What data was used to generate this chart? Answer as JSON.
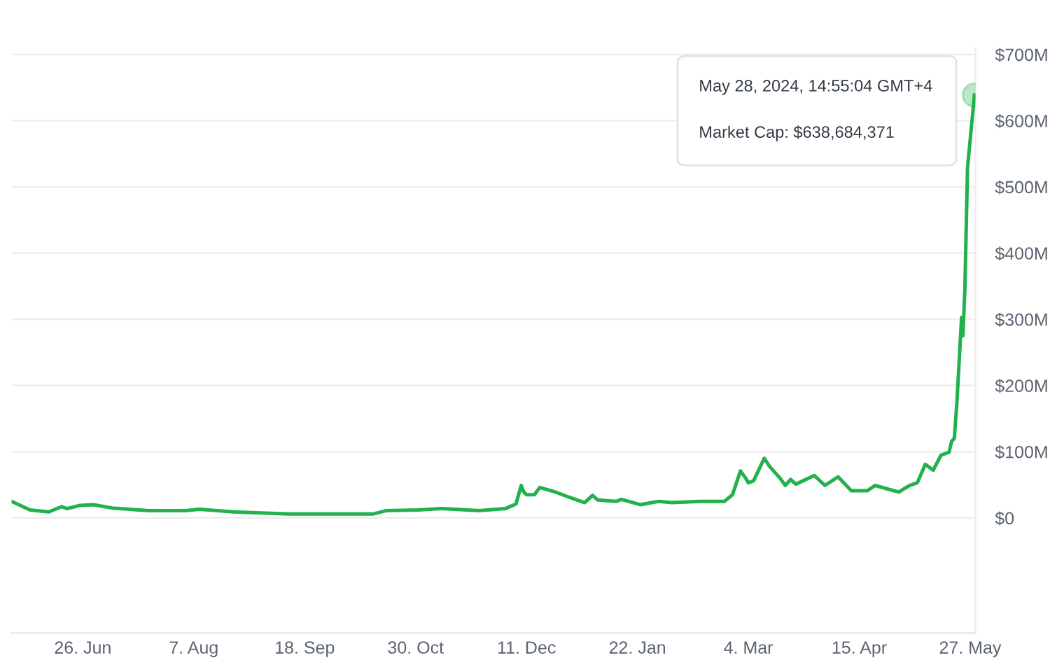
{
  "chart_data": {
    "type": "line",
    "x": [
      "2023-05-30",
      "2023-06-06",
      "2023-06-13",
      "2023-06-18",
      "2023-06-20",
      "2023-06-25",
      "2023-06-30",
      "2023-07-07",
      "2023-07-21",
      "2023-08-04",
      "2023-08-09",
      "2023-08-22",
      "2023-09-12",
      "2023-09-26",
      "2023-10-14",
      "2023-10-19",
      "2023-10-31",
      "2023-11-09",
      "2023-11-23",
      "2023-12-03",
      "2023-12-07",
      "2023-12-09",
      "2023-12-10",
      "2023-12-11",
      "2023-12-14",
      "2023-12-16",
      "2023-12-22",
      "2023-12-28",
      "2024-01-02",
      "2024-01-05",
      "2024-01-07",
      "2024-01-14",
      "2024-01-16",
      "2024-01-23",
      "2024-01-30",
      "2024-02-04",
      "2024-02-15",
      "2024-02-24",
      "2024-02-27",
      "2024-03-01",
      "2024-03-03",
      "2024-03-04",
      "2024-03-06",
      "2024-03-10",
      "2024-03-12",
      "2024-03-16",
      "2024-03-18",
      "2024-03-20",
      "2024-03-22",
      "2024-03-29",
      "2024-04-02",
      "2024-04-07",
      "2024-04-12",
      "2024-04-18",
      "2024-04-21",
      "2024-04-30",
      "2024-05-04",
      "2024-05-07",
      "2024-05-10",
      "2024-05-13",
      "2024-05-16",
      "2024-05-19",
      "2024-05-20",
      "2024-05-21",
      "2024-05-22",
      "2024-05-23T18:00",
      "2024-05-24T06:00",
      "2024-05-25",
      "2024-05-26",
      "2024-05-28T14:55"
    ],
    "series": [
      {
        "color": "#22b14c",
        "values": [
          25,
          12,
          9,
          17,
          14,
          19,
          20,
          15,
          11,
          11,
          13,
          9,
          6,
          6,
          6,
          11,
          12,
          14,
          11,
          14,
          21,
          49,
          39,
          35,
          35,
          46,
          39,
          30,
          23,
          34,
          27,
          25,
          28,
          20,
          25,
          23,
          25,
          25,
          35,
          71,
          60,
          53,
          56,
          90,
          78,
          60,
          49,
          58,
          51,
          64,
          49,
          62,
          41,
          41,
          49,
          39,
          49,
          53,
          81,
          72,
          95,
          99,
          116,
          120,
          176,
          303,
          275,
          346,
          529,
          638.684
        ]
      }
    ],
    "xlim": [
      "2023-05-30",
      "2024-05-29"
    ],
    "xticks": [
      {
        "value": "2023-06-26",
        "label": "26. Jun"
      },
      {
        "value": "2023-08-07",
        "label": "7. Aug"
      },
      {
        "value": "2023-09-18",
        "label": "18. Sep"
      },
      {
        "value": "2023-10-30",
        "label": "30. Oct"
      },
      {
        "value": "2023-12-11",
        "label": "11. Dec"
      },
      {
        "value": "2024-01-22",
        "label": "22. Jan"
      },
      {
        "value": "2024-03-04",
        "label": "4. Mar"
      },
      {
        "value": "2024-04-15",
        "label": "15. Apr"
      },
      {
        "value": "2024-05-27",
        "label": "27. May"
      }
    ],
    "ylim": [
      -174,
      710
    ],
    "yticks": [
      {
        "value": 0,
        "label": "$0"
      },
      {
        "value": 100,
        "label": "$100M"
      },
      {
        "value": 200,
        "label": "$200M"
      },
      {
        "value": 300,
        "label": "$300M"
      },
      {
        "value": 400,
        "label": "$400M"
      },
      {
        "value": 500,
        "label": "$500M"
      },
      {
        "value": 600,
        "label": "$600M"
      },
      {
        "value": 700,
        "label": "$700M"
      }
    ],
    "grid": "y",
    "legend": false,
    "marker": "none",
    "line_style": "solid",
    "annotations": [
      "May 28, 2024, 14:55:04 GMT+4",
      "Market Cap: $638,684,371"
    ]
  }
}
